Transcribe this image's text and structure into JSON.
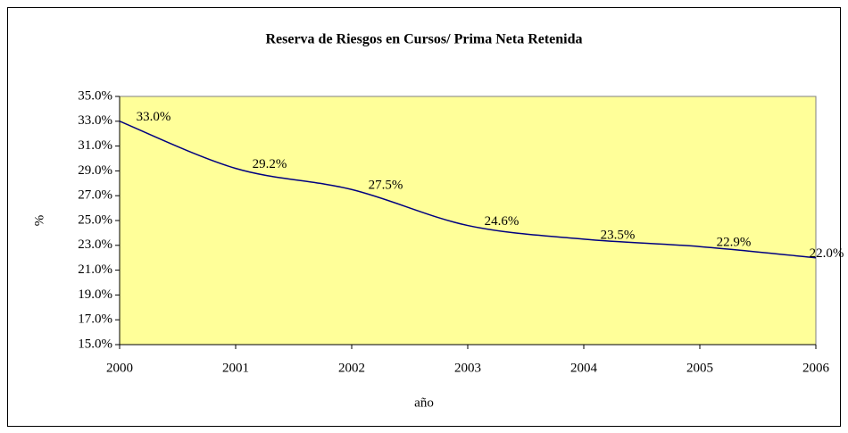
{
  "chart_data": {
    "type": "line",
    "title": "Reserva de Riesgos en Cursos/ Prima Neta Retenida",
    "x_label": "año",
    "y_label": "%",
    "categories": [
      "2000",
      "2001",
      "2002",
      "2003",
      "2004",
      "2005",
      "2006"
    ],
    "series": [
      {
        "name": "Reserva de Riesgos en Cursos/ Prima Neta Retenida",
        "color": "#000080",
        "values": [
          33.0,
          29.2,
          27.5,
          24.6,
          23.5,
          22.9,
          22.0
        ],
        "value_labels": [
          "33.0%",
          "29.2%",
          "27.5%",
          "24.6%",
          "23.5%",
          "22.9%",
          "22.0%"
        ]
      }
    ],
    "ylim": [
      15,
      35
    ],
    "yticks": [
      {
        "value": 15,
        "label": "15.0%"
      },
      {
        "value": 17,
        "label": "17.0%"
      },
      {
        "value": 19,
        "label": "19.0%"
      },
      {
        "value": 21,
        "label": "21.0%"
      },
      {
        "value": 23,
        "label": "23.0%"
      },
      {
        "value": 25,
        "label": "25.0%"
      },
      {
        "value": 27,
        "label": "27.0%"
      },
      {
        "value": 29,
        "label": "29.0%"
      },
      {
        "value": 31,
        "label": "31.0%"
      },
      {
        "value": 33,
        "label": "33.0%"
      },
      {
        "value": 35,
        "label": "35.0%"
      }
    ],
    "plot_background": "#FFFF99"
  }
}
